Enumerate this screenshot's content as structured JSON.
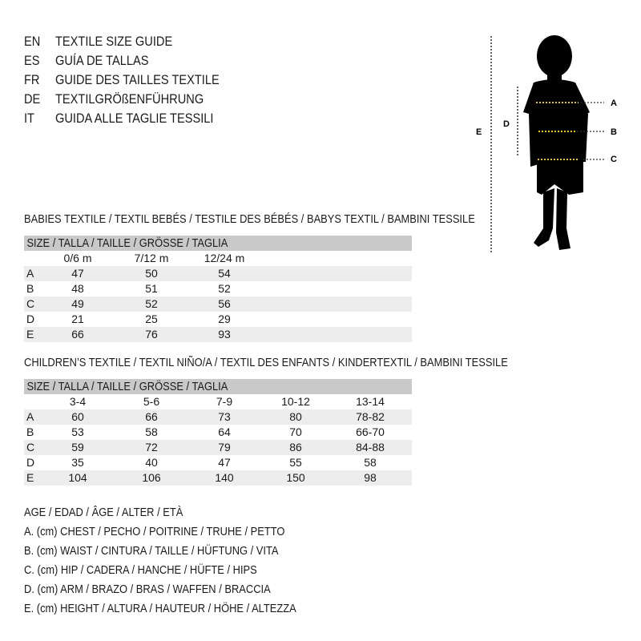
{
  "languages": [
    {
      "code": "EN",
      "title": "TEXTILE SIZE GUIDE"
    },
    {
      "code": "ES",
      "title": "GUÍA DE TALLAS"
    },
    {
      "code": "FR",
      "title": "GUIDE DES TAILLES TEXTILE"
    },
    {
      "code": "DE",
      "title": "TEXTILGRÖßENFÜHRUNG"
    },
    {
      "code": "IT",
      "title": "GUIDA ALLE TAGLIE TESSILI"
    }
  ],
  "babies": {
    "title": "BABIES TEXTILE / TEXTIL BEBÉS / TESTILE DES BÉBÉS / BABYS TEXTIL / BAMBINI TESSILE",
    "header": "SIZE / TALLA / TAILLE / GRÖSSE / TAGLIA",
    "columns": [
      "0/6 m",
      "7/12 m",
      "12/24 m"
    ],
    "rows": [
      {
        "label": "A",
        "values": [
          "47",
          "50",
          "54"
        ]
      },
      {
        "label": "B",
        "values": [
          "48",
          "51",
          "52"
        ]
      },
      {
        "label": "C",
        "values": [
          "49",
          "52",
          "56"
        ]
      },
      {
        "label": "D",
        "values": [
          "21",
          "25",
          "29"
        ]
      },
      {
        "label": "E",
        "values": [
          "66",
          "76",
          "93"
        ]
      }
    ]
  },
  "children": {
    "title": "CHILDREN’S TEXTILE / TEXTIL NIÑO/A / TEXTIL DES ENFANTS / KINDERTEXTIL / BAMBINI TESSILE",
    "header": "SIZE / TALLA / TAILLE / GRÖSSE / TAGLIA",
    "columns": [
      "3-4",
      "5-6",
      "7-9",
      "10-12",
      "13-14"
    ],
    "rows": [
      {
        "label": "A",
        "values": [
          "60",
          "66",
          "73",
          "80",
          "78-82"
        ]
      },
      {
        "label": "B",
        "values": [
          "53",
          "58",
          "64",
          "70",
          "66-70"
        ]
      },
      {
        "label": "C",
        "values": [
          "59",
          "72",
          "79",
          "86",
          "84-88"
        ]
      },
      {
        "label": "D",
        "values": [
          "35",
          "40",
          "47",
          "55",
          "58"
        ]
      },
      {
        "label": "E",
        "values": [
          "104",
          "106",
          "140",
          "150",
          "98"
        ]
      }
    ]
  },
  "legend": [
    "AGE / EDAD / ÂGE / ALTER / ETÀ",
    "A. (cm) CHEST / PECHO / POITRINE / TRUHE / PETTO",
    "B. (cm) WAIST / CINTURA / TAILLE / HÜFTUNG / VITA",
    "C. (cm) HIP / CADERA / HANCHE / HÜFTE / HIPS",
    "D. (cm) ARM / BRAZO / BRAS / WAFFEN / BRACCIA",
    "E. (cm) HEIGHT / ALTURA / HAUTEUR / HÖHE / ALTEZZA"
  ],
  "figure": {
    "labels": {
      "a": "A",
      "b": "B",
      "c": "C",
      "d": "D",
      "e": "E"
    },
    "highlight_color": "#e8c800"
  }
}
